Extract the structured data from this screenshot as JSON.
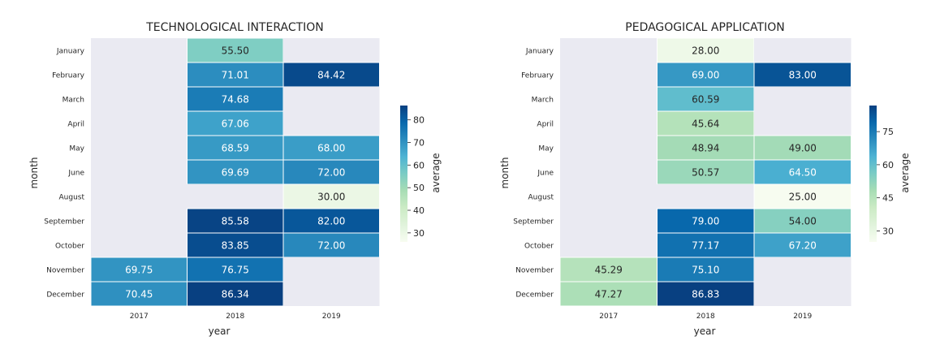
{
  "chart_data": [
    {
      "type": "heatmap",
      "title": "TECHNOLOGICAL INTERACTION",
      "xlabel": "year",
      "ylabel": "month",
      "colorbar_label": "average",
      "colormap": "GnBu",
      "missing_color": "#eaeaf2",
      "x": [
        "2017",
        "2018",
        "2019"
      ],
      "y": [
        "January",
        "February",
        "March",
        "April",
        "May",
        "June",
        "August",
        "September",
        "October",
        "November",
        "December"
      ],
      "values": [
        [
          null,
          55.5,
          null
        ],
        [
          null,
          71.01,
          84.42
        ],
        [
          null,
          74.68,
          null
        ],
        [
          null,
          67.06,
          null
        ],
        [
          null,
          68.59,
          68.0
        ],
        [
          null,
          69.69,
          72.0
        ],
        [
          null,
          null,
          30.0
        ],
        [
          null,
          85.58,
          82.0
        ],
        [
          null,
          83.85,
          72.0
        ],
        [
          69.75,
          76.75,
          null
        ],
        [
          70.45,
          86.34,
          null
        ]
      ],
      "value_labels": [
        [
          null,
          "55.50",
          null
        ],
        [
          null,
          "71.01",
          "84.42"
        ],
        [
          null,
          "74.68",
          null
        ],
        [
          null,
          "67.06",
          null
        ],
        [
          null,
          "68.59",
          "68.00"
        ],
        [
          null,
          "69.69",
          "72.00"
        ],
        [
          null,
          null,
          "30.00"
        ],
        [
          null,
          "85.58",
          "82.00"
        ],
        [
          null,
          "83.85",
          "72.00"
        ],
        [
          "69.75",
          "76.75",
          null
        ],
        [
          "70.45",
          "86.34",
          null
        ]
      ],
      "colorbar_range": [
        26,
        86.34
      ],
      "colorbar_ticks": [
        30,
        40,
        50,
        60,
        70,
        80
      ]
    },
    {
      "type": "heatmap",
      "title": "PEDAGOGICAL APPLICATION",
      "xlabel": "year",
      "ylabel": "month",
      "colorbar_label": "average",
      "colormap": "GnBu",
      "missing_color": "#eaeaf2",
      "x": [
        "2017",
        "2018",
        "2019"
      ],
      "y": [
        "January",
        "February",
        "March",
        "April",
        "May",
        "June",
        "August",
        "September",
        "October",
        "November",
        "December"
      ],
      "values": [
        [
          null,
          28.0,
          null
        ],
        [
          null,
          69.0,
          83.0
        ],
        [
          null,
          60.59,
          null
        ],
        [
          null,
          45.64,
          null
        ],
        [
          null,
          48.94,
          49.0
        ],
        [
          null,
          50.57,
          64.5
        ],
        [
          null,
          null,
          25.0
        ],
        [
          null,
          79.0,
          54.0
        ],
        [
          null,
          77.17,
          67.2
        ],
        [
          45.29,
          75.1,
          null
        ],
        [
          47.27,
          86.83,
          null
        ]
      ],
      "value_labels": [
        [
          null,
          "28.00",
          null
        ],
        [
          null,
          "69.00",
          "83.00"
        ],
        [
          null,
          "60.59",
          null
        ],
        [
          null,
          "45.64",
          null
        ],
        [
          null,
          "48.94",
          "49.00"
        ],
        [
          null,
          "50.57",
          "64.50"
        ],
        [
          null,
          null,
          "25.00"
        ],
        [
          null,
          "79.00",
          "54.00"
        ],
        [
          null,
          "77.17",
          "67.20"
        ],
        [
          "45.29",
          "75.10",
          null
        ],
        [
          "47.27",
          "86.83",
          null
        ]
      ],
      "colorbar_range": [
        25,
        86.83
      ],
      "colorbar_ticks": [
        30,
        45,
        60,
        75
      ]
    }
  ]
}
